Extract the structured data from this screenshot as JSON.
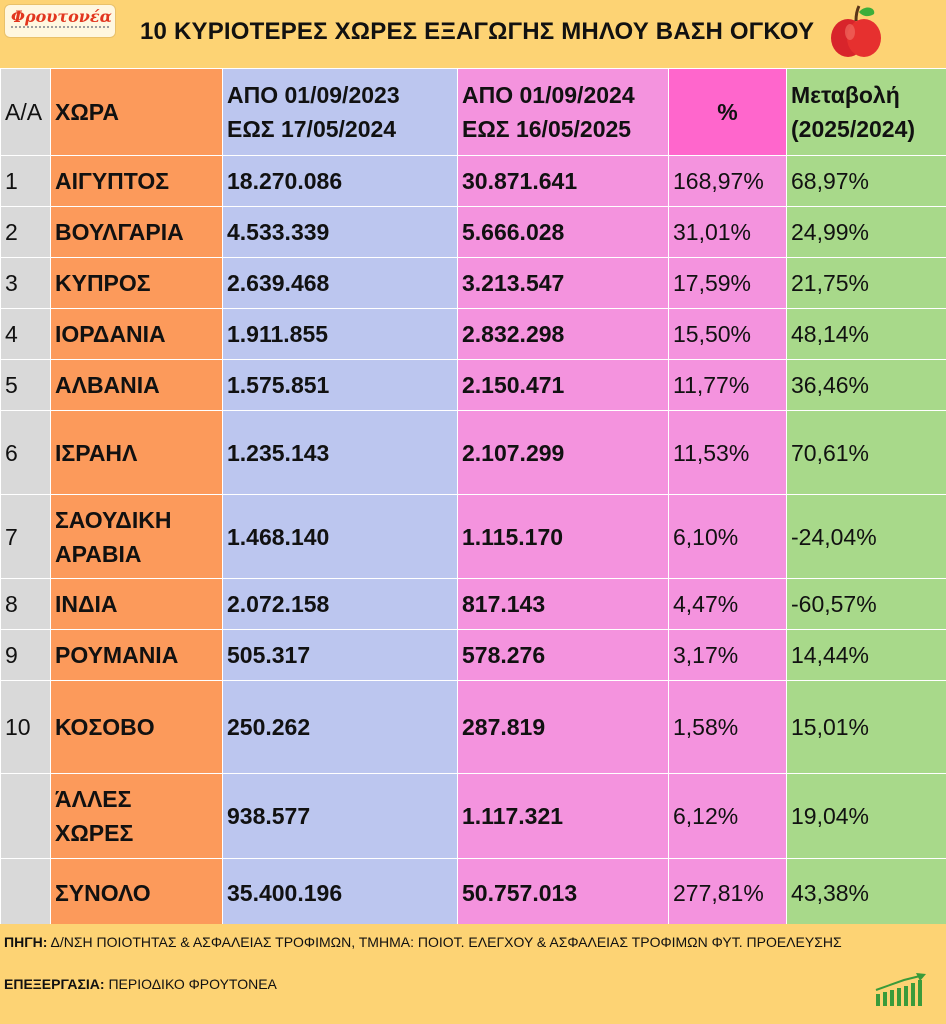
{
  "brand": {
    "logo_text": "Φρουτονέα"
  },
  "title": "10 ΚΥΡΙΟΤΕΡΕΣ ΧΩΡΕΣ ΕΞΑΓΩΓΗΣ ΜΗΛΟΥ ΒΑΣΗ ΟΓΚΟΥ",
  "icons": {
    "title_icon": "apple-icon",
    "footer_icon": "growth-chart-icon"
  },
  "colors": {
    "background": "#fdd374",
    "aa_column": "#d9d9d9",
    "country_column": "#fc9a5b",
    "period1_column": "#bcc6ef",
    "period2_column": "#f493de",
    "pct_header": "#ff66cc",
    "change_column": "#a8d98a"
  },
  "table": {
    "headers": {
      "aa": "Α/Α",
      "country": "ΧΩΡΑ",
      "period1_line1": "ΑΠΟ 01/09/2023",
      "period1_line2": "ΕΩΣ 17/05/2024",
      "period2_line1": "ΑΠΟ 01/09/2024",
      "period2_line2": "ΕΩΣ  16/05/2025",
      "pct": "%",
      "change_line1": "Μεταβολή",
      "change_line2": "(2025/2024)"
    },
    "rows": [
      {
        "aa": "1",
        "country": "ΑΙΓΥΠΤΟΣ",
        "p1": "18.270.086",
        "p2": "30.871.641",
        "pct": "168,97%",
        "chg": "68,97%"
      },
      {
        "aa": "2",
        "country": "ΒΟΥΛΓΑΡΙΑ",
        "p1": "4.533.339",
        "p2": "5.666.028",
        "pct": "31,01%",
        "chg": "24,99%"
      },
      {
        "aa": "3",
        "country": "ΚΥΠΡΟΣ",
        "p1": "2.639.468",
        "p2": "3.213.547",
        "pct": "17,59%",
        "chg": "21,75%"
      },
      {
        "aa": "4",
        "country": "ΙΟΡΔΑΝΙΑ",
        "p1": "1.911.855",
        "p2": "2.832.298",
        "pct": "15,50%",
        "chg": "48,14%"
      },
      {
        "aa": "5",
        "country": "ΑΛΒΑΝΙΑ",
        "p1": "1.575.851",
        "p2": "2.150.471",
        "pct": "11,77%",
        "chg": "36,46%"
      },
      {
        "aa": "6",
        "country": "ΙΣΡΑΗΛ",
        "p1": "1.235.143",
        "p2": "2.107.299",
        "pct": "11,53%",
        "chg": "70,61%"
      },
      {
        "aa": "7",
        "country_line1": "ΣΑΟΥΔΙΚΗ",
        "country_line2": "ΑΡΑΒΙΑ",
        "p1": "1.468.140",
        "p2": "1.115.170",
        "pct": "6,10%",
        "chg": "-24,04%"
      },
      {
        "aa": "8",
        "country": "ΙΝΔΙΑ",
        "p1": "2.072.158",
        "p2": "817.143",
        "pct": "4,47%",
        "chg": "-60,57%"
      },
      {
        "aa": "9",
        "country": "ΡΟΥΜΑΝΙΑ",
        "p1": "505.317",
        "p2": "578.276",
        "pct": "3,17%",
        "chg": "14,44%"
      },
      {
        "aa": "10",
        "country": "ΚΟΣΟΒΟ",
        "p1": "250.262",
        "p2": "287.819",
        "pct": "1,58%",
        "chg": "15,01%"
      },
      {
        "aa": "",
        "country_line1": "ΆΛΛΕΣ",
        "country_line2": "ΧΩΡΕΣ",
        "p1": "938.577",
        "p2": "1.117.321",
        "pct": "6,12%",
        "chg": "19,04%"
      },
      {
        "aa": "",
        "country": "ΣΥΝΟΛΟ",
        "p1": "35.400.196",
        "p2": "50.757.013",
        "pct": "277,81%",
        "chg": "43,38%"
      }
    ]
  },
  "footer": {
    "source_label": "ΠΗΓΗ:",
    "source_text": "Δ/ΝΣΗ ΠΟΙΟΤΗΤΑΣ & ΑΣΦΑΛΕΙΑΣ ΤΡΟΦΙΜΩΝ, ΤΜΗΜΑ: ΠΟΙΟΤ. ΕΛΕΓΧΟΥ & ΑΣΦΑΛΕΙΑΣ ΤΡΟΦΙΜΩΝ ΦΥΤ. ΠΡΟΕΛΕΥΣΗΣ",
    "processing_label": "ΕΠΕΞΕΡΓΑΣΙΑ:",
    "processing_text": "ΠΕΡΙΟΔΙΚΟ ΦΡΟΥΤΟΝΕΑ"
  }
}
